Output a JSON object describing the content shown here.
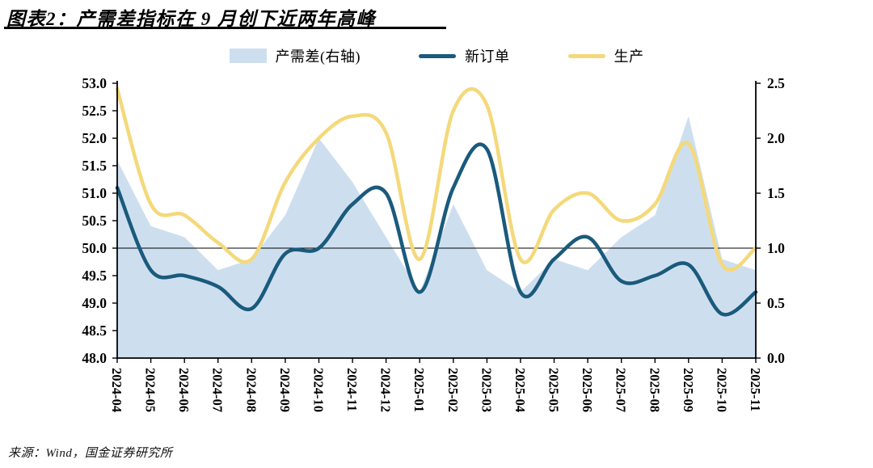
{
  "title": "图表2：产需差指标在 9 月创下近两年高峰",
  "source": "来源：Wind，国金证券研究所",
  "colors": {
    "gap_area": "#cddfef",
    "new_orders_line": "#1a5a7c",
    "production_line": "#f4d97b",
    "axis": "#000000",
    "background": "#ffffff"
  },
  "legend": [
    {
      "label": "产需差(右轴)",
      "swatch": "area",
      "color": "#cddfef"
    },
    {
      "label": "新订单",
      "swatch": "line",
      "color": "#1a5a7c"
    },
    {
      "label": "生产",
      "swatch": "line",
      "color": "#f4d97b"
    }
  ],
  "chart_data": {
    "type": "line",
    "title": "图表2：产需差指标在 9 月创下近两年高峰",
    "categories": [
      "2024-04",
      "2024-05",
      "2024-06",
      "2024-07",
      "2024-08",
      "2024-09",
      "2024-10",
      "2024-11",
      "2024-12",
      "2025-01",
      "2025-02",
      "2025-03",
      "2025-04",
      "2025-05",
      "2025-06",
      "2025-07",
      "2025-08",
      "2025-09",
      "2025-10",
      "2025-11"
    ],
    "series": [
      {
        "name": "产需差(右轴)",
        "style": "area",
        "axis": "right",
        "color": "#cddfef",
        "values": [
          1.8,
          1.2,
          1.1,
          0.8,
          0.9,
          1.3,
          2.0,
          1.6,
          1.1,
          0.6,
          1.4,
          0.8,
          0.6,
          0.9,
          0.8,
          1.1,
          1.3,
          2.2,
          0.9,
          0.8
        ]
      },
      {
        "name": "新订单",
        "style": "line",
        "axis": "left",
        "color": "#1a5a7c",
        "values": [
          51.1,
          49.6,
          49.5,
          49.3,
          48.9,
          49.9,
          50.0,
          50.8,
          51.0,
          49.2,
          51.1,
          51.8,
          49.2,
          49.8,
          50.2,
          49.4,
          49.5,
          49.7,
          48.8,
          49.2
        ]
      },
      {
        "name": "生产",
        "style": "line",
        "axis": "left",
        "color": "#f4d97b",
        "values": [
          52.9,
          50.8,
          50.6,
          50.1,
          49.8,
          51.2,
          52.0,
          52.4,
          52.1,
          49.8,
          52.5,
          52.6,
          49.8,
          50.7,
          51.0,
          50.5,
          50.8,
          51.9,
          49.7,
          50.0
        ]
      }
    ],
    "left_axis": {
      "min": 48.0,
      "max": 53.0,
      "tick_labels": [
        "53.0",
        "52.5",
        "52.0",
        "51.5",
        "51.0",
        "50.5",
        "50.0",
        "49.5",
        "49.0",
        "48.5",
        "48.0"
      ]
    },
    "right_axis": {
      "min": 0.0,
      "max": 2.5,
      "tick_labels": [
        "2.5",
        "2.0",
        "1.5",
        "1.0",
        "0.5",
        "0.0"
      ]
    },
    "reference_line_left_value": 50.0,
    "legend_position": "top",
    "grid": false,
    "line_smoothing": true
  }
}
